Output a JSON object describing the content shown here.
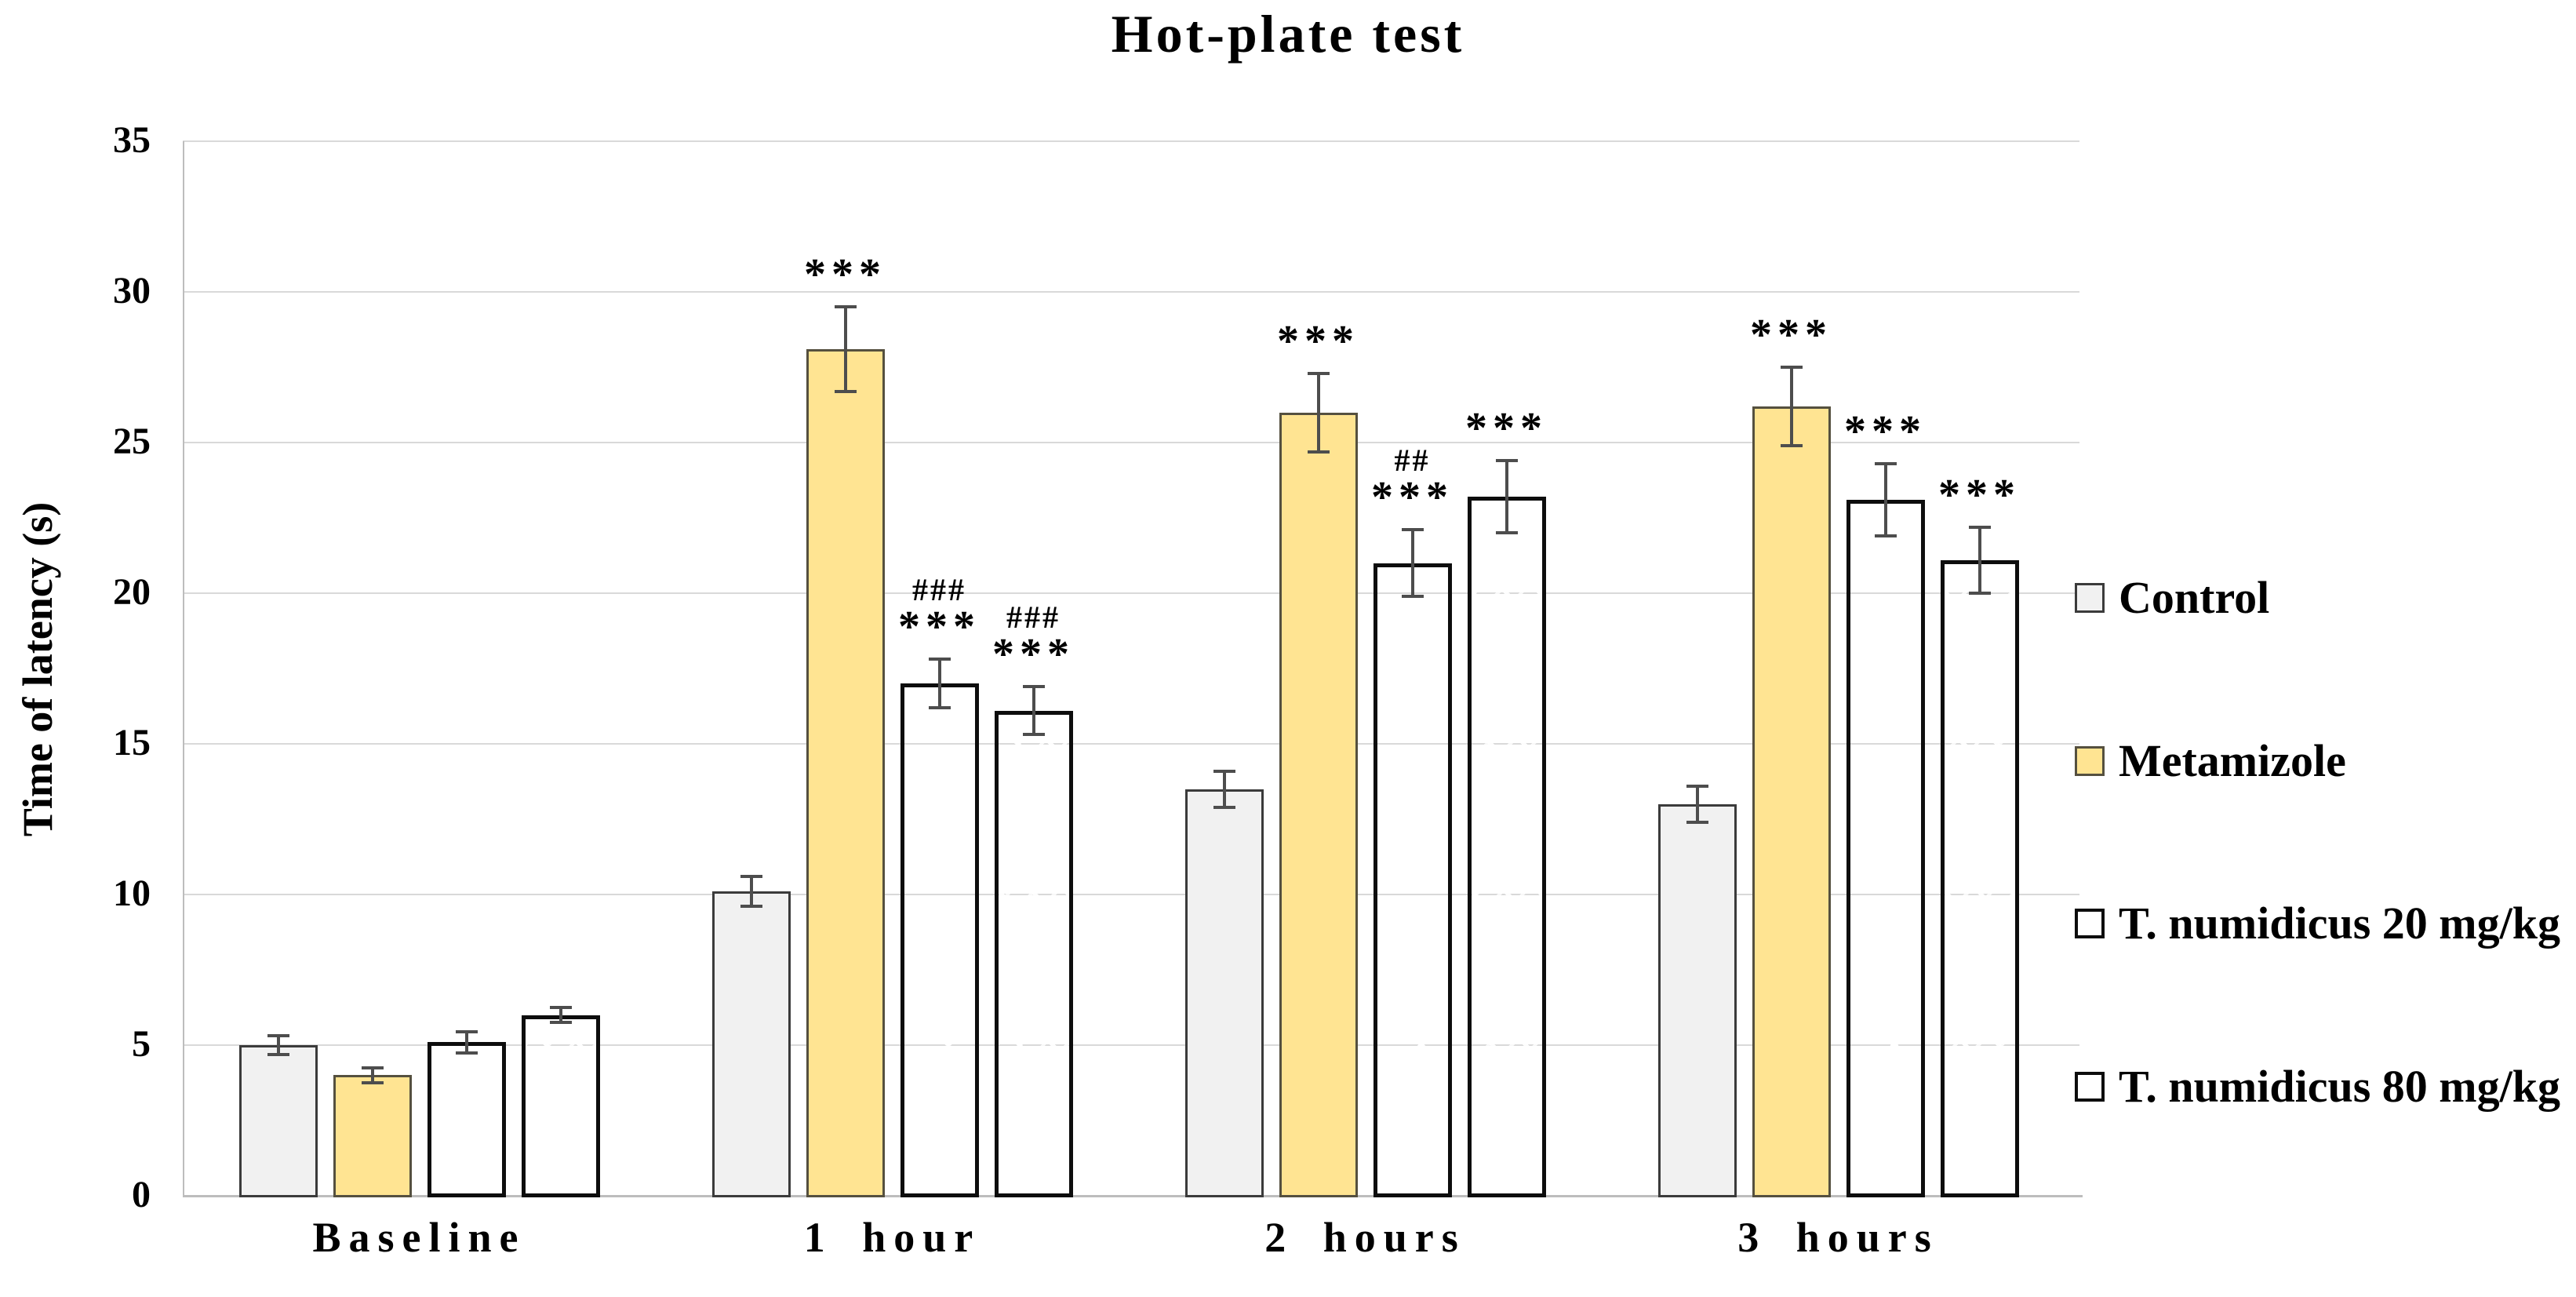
{
  "title": "Hot-plate test",
  "chart_data": {
    "type": "bar",
    "title": "Hot-plate test",
    "xlabel": "",
    "ylabel": "Time of latency (s)",
    "ylim": [
      0,
      35
    ],
    "yticks": [
      0,
      5,
      10,
      15,
      20,
      25,
      30,
      35
    ],
    "grid": "horizontal",
    "legend_position": "right",
    "categories": [
      "Baseline",
      "1 hour",
      "2 hours",
      "3 hours"
    ],
    "series": [
      {
        "name": "Control",
        "fill": "#F1F1F1",
        "border": "#3B3B3B",
        "pattern": "solid",
        "values": [
          5.0,
          10.1,
          13.5,
          13.0
        ],
        "errors": [
          0.3,
          0.5,
          0.6,
          0.6
        ],
        "annotations": [
          [],
          [],
          [],
          []
        ]
      },
      {
        "name": "Metamizole",
        "fill": "#FFE492",
        "border": "#55503F",
        "pattern": "solid",
        "values": [
          4.0,
          28.1,
          26.0,
          26.2
        ],
        "errors": [
          0.25,
          1.4,
          1.3,
          1.3
        ],
        "annotations": [
          [],
          [
            "***"
          ],
          [
            "***"
          ],
          [
            "***"
          ]
        ]
      },
      {
        "name": "T. numidicus 20 mg/kg",
        "fill": "#A9BCD3",
        "border": "#0D0D0D",
        "pattern": "dots",
        "values": [
          5.1,
          17.0,
          21.0,
          23.1
        ],
        "errors": [
          0.35,
          0.8,
          1.1,
          1.2
        ],
        "annotations": [
          [],
          [
            "###",
            "***"
          ],
          [
            "##",
            "***"
          ],
          [
            "***"
          ]
        ]
      },
      {
        "name": "T. numidicus 80 mg/kg",
        "fill": "#7A96B2",
        "border": "#0D0D0D",
        "pattern": "diagonal",
        "values": [
          6.0,
          16.1,
          23.2,
          21.1
        ],
        "errors": [
          0.25,
          0.8,
          1.2,
          1.1
        ],
        "annotations": [
          [],
          [
            "###",
            "***"
          ],
          [
            "***"
          ],
          [
            "***"
          ]
        ]
      }
    ],
    "colors": {
      "error_bar": "#4D4D4D",
      "gridline": "#D9D9D9",
      "axis": "#BDBDBD",
      "annotation": "#000000",
      "background": "#FFFFFF"
    }
  }
}
